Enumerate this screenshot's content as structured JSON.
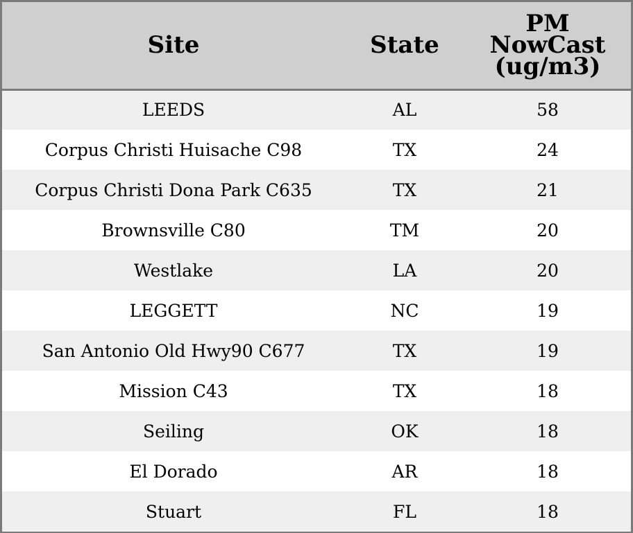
{
  "chart_data": {
    "type": "table",
    "columns": [
      "Site",
      "State",
      "PM NowCast (ug/m3)"
    ],
    "header_lines": {
      "site": "Site",
      "state": "State",
      "pm": [
        "PM",
        "NowCast",
        "(ug/m3)"
      ]
    },
    "rows": [
      {
        "site": "LEEDS",
        "state": "AL",
        "pm": "58"
      },
      {
        "site": "Corpus Christi Huisache C98",
        "state": "TX",
        "pm": "24"
      },
      {
        "site": "Corpus Christi Dona Park C635",
        "state": "TX",
        "pm": "21"
      },
      {
        "site": "Brownsville C80",
        "state": "TM",
        "pm": "20"
      },
      {
        "site": "Westlake",
        "state": "LA",
        "pm": "20"
      },
      {
        "site": "LEGGETT",
        "state": "NC",
        "pm": "19"
      },
      {
        "site": "San Antonio Old Hwy90 C677",
        "state": "TX",
        "pm": "19"
      },
      {
        "site": "Mission C43",
        "state": "TX",
        "pm": "18"
      },
      {
        "site": "Seiling",
        "state": "OK",
        "pm": "18"
      },
      {
        "site": "El Dorado",
        "state": "AR",
        "pm": "18"
      },
      {
        "site": "Stuart",
        "state": "FL",
        "pm": "18"
      }
    ]
  },
  "colors": {
    "header_bg": "#cfcfcf",
    "row_alt_bg": "#efefef",
    "row_bg": "#ffffff",
    "border": "#7a7a7a"
  }
}
